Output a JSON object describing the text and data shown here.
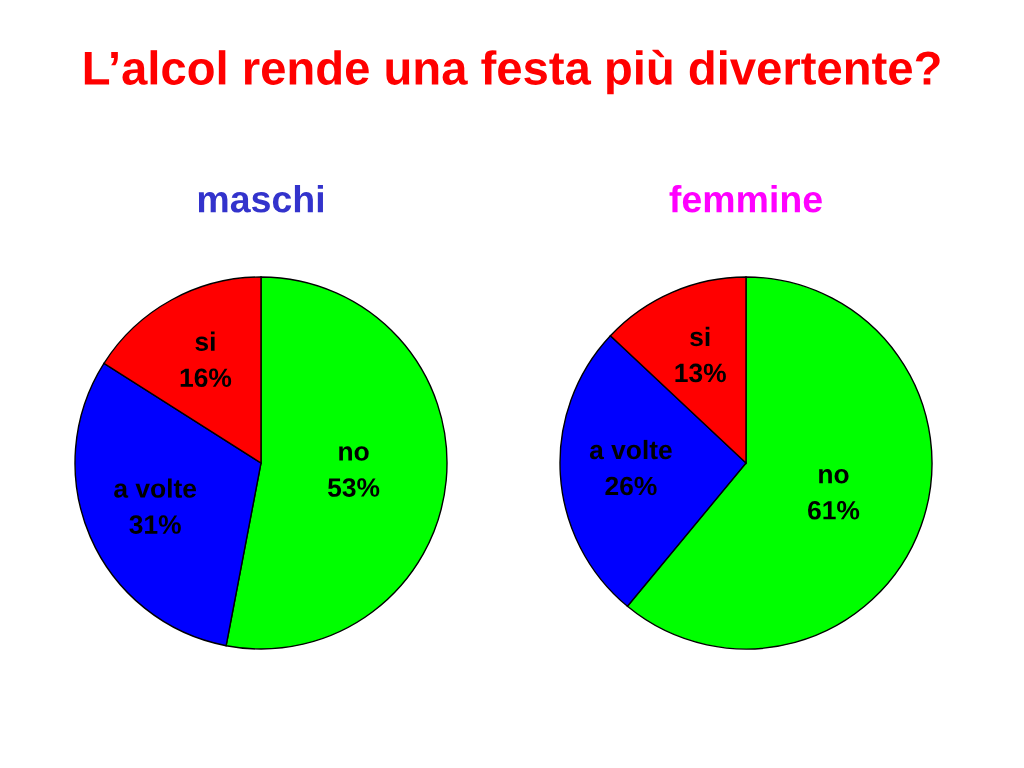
{
  "chart_data": [
    {
      "type": "other",
      "title": "L’alcol rende una festa più divertente?"
    },
    {
      "type": "pie",
      "title": "maschi",
      "categories": [
        "no",
        "a volte",
        "si"
      ],
      "values": [
        53,
        31,
        16
      ],
      "colors": [
        "#00ff00",
        "#0000ff",
        "#ff0000"
      ],
      "value_labels": [
        "53%",
        "31%",
        "16%"
      ]
    },
    {
      "type": "pie",
      "title": "femmine",
      "categories": [
        "no",
        "a volte",
        "si"
      ],
      "values": [
        61,
        26,
        13
      ],
      "colors": [
        "#00ff00",
        "#0000ff",
        "#ff0000"
      ],
      "value_labels": [
        "61%",
        "26%",
        "13%"
      ]
    }
  ]
}
